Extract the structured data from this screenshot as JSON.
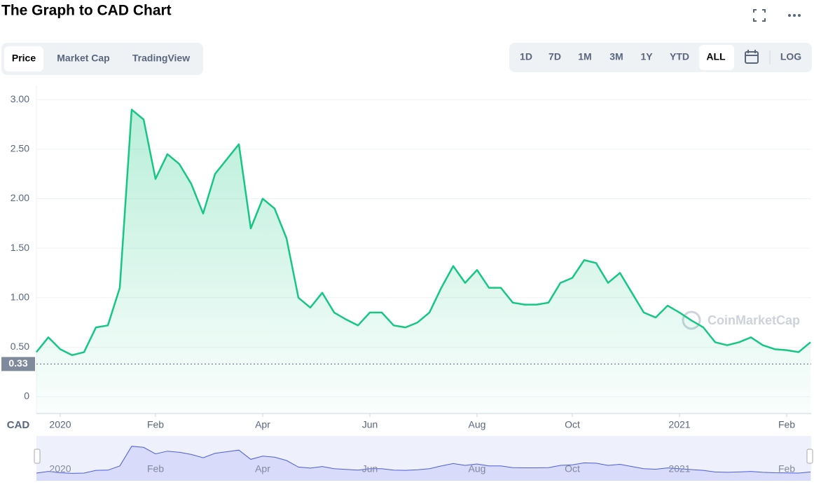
{
  "ui": {
    "tabs": [
      "Price",
      "Market Cap",
      "TradingView"
    ],
    "ranges": [
      "1D",
      "7D",
      "1M",
      "3M",
      "1Y",
      "YTD",
      "ALL"
    ],
    "log": "LOG",
    "watermark": "CoinMarketCap"
  },
  "chart_data": {
    "type": "line",
    "title": "The Graph to CAD Chart",
    "y_label": "CAD",
    "color": "#16c784",
    "grid": true,
    "current_value": 0.33,
    "categories": [
      null,
      null,
      "2020",
      null,
      null,
      null,
      null,
      null,
      null,
      null,
      "Feb",
      null,
      null,
      null,
      null,
      null,
      null,
      null,
      null,
      "Apr",
      null,
      null,
      null,
      null,
      null,
      null,
      null,
      null,
      "Jun",
      null,
      null,
      null,
      null,
      null,
      null,
      null,
      null,
      "Aug",
      null,
      null,
      null,
      null,
      null,
      null,
      null,
      "Oct",
      null,
      null,
      null,
      null,
      null,
      null,
      null,
      null,
      "2021",
      null,
      null,
      null,
      null,
      null,
      null,
      null,
      null,
      "Feb",
      null,
      null
    ],
    "values": [
      0.45,
      0.6,
      0.48,
      0.42,
      0.45,
      0.7,
      0.72,
      1.1,
      2.9,
      2.8,
      2.2,
      2.45,
      2.35,
      2.15,
      1.85,
      2.25,
      2.4,
      2.55,
      1.7,
      2.0,
      1.9,
      1.6,
      1.0,
      0.9,
      1.05,
      0.85,
      0.78,
      0.72,
      0.85,
      0.85,
      0.72,
      0.7,
      0.75,
      0.85,
      1.1,
      1.32,
      1.15,
      1.28,
      1.1,
      1.1,
      0.95,
      0.93,
      0.93,
      0.95,
      1.15,
      1.2,
      1.38,
      1.35,
      1.15,
      1.25,
      1.05,
      0.85,
      0.8,
      0.92,
      0.85,
      0.77,
      0.7,
      0.55,
      0.52,
      0.55,
      0.6,
      0.52,
      0.48,
      0.47,
      0.45,
      0.55
    ],
    "ylim": [
      0,
      3.2
    ],
    "yticks": [
      0,
      {
        "value": 0.5,
        "label": "0.50"
      },
      {
        "value": 1,
        "label": "1.00"
      },
      {
        "value": 1.5,
        "label": "1.50"
      },
      {
        "value": 2,
        "label": "2.00"
      },
      {
        "value": 2.5,
        "label": "2.50"
      },
      {
        "value": 3,
        "label": "3.00"
      }
    ]
  }
}
